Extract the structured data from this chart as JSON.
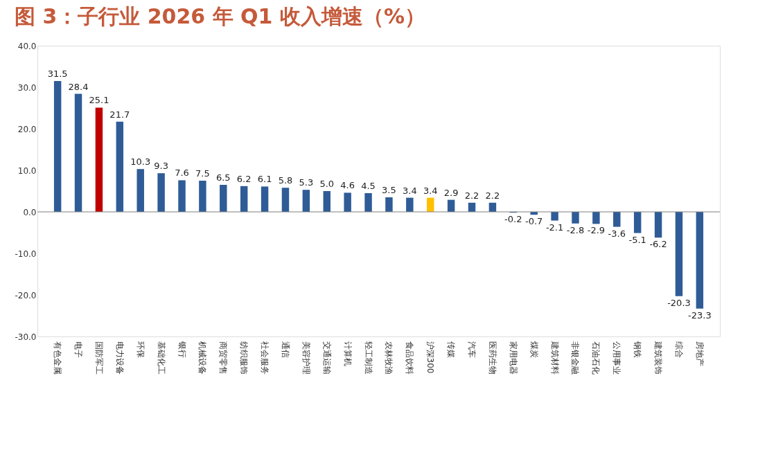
{
  "chart_data": {
    "type": "bar",
    "title": "图 3：子行业 2026 年 Q1 收入增速（%）",
    "categories": [
      "有色金属",
      "电子",
      "国防军工",
      "电力设备",
      "环保",
      "基础化工",
      "银行",
      "机械设备",
      "商贸零售",
      "纺织服饰",
      "社会服务",
      "通信",
      "美容护理",
      "交通运输",
      "计算机",
      "轻工制造",
      "农林牧渔",
      "食品饮料",
      "沪深300",
      "传媒",
      "汽车",
      "医药生物",
      "家用电器",
      "煤炭",
      "建筑材料",
      "非银金融",
      "石油石化",
      "公用事业",
      "钢铁",
      "建筑装饰",
      "综合",
      "房地产"
    ],
    "values": [
      31.5,
      28.4,
      25.1,
      21.7,
      10.3,
      9.3,
      7.6,
      7.5,
      6.5,
      6.2,
      6.1,
      5.8,
      5.3,
      5.0,
      4.6,
      4.5,
      3.5,
      3.4,
      3.4,
      2.9,
      2.2,
      2.2,
      -0.2,
      -0.7,
      -2.1,
      -2.8,
      -2.9,
      -3.6,
      -5.1,
      -6.2,
      -20.3,
      -23.3
    ],
    "colors": [
      "#2f5c97",
      "#2f5c97",
      "#c00000",
      "#2f5c97",
      "#2f5c97",
      "#2f5c97",
      "#2f5c97",
      "#2f5c97",
      "#2f5c97",
      "#2f5c97",
      "#2f5c97",
      "#2f5c97",
      "#2f5c97",
      "#2f5c97",
      "#2f5c97",
      "#2f5c97",
      "#2f5c97",
      "#2f5c97",
      "#ffc000",
      "#2f5c97",
      "#2f5c97",
      "#2f5c97",
      "#2f5c97",
      "#2f5c97",
      "#2f5c97",
      "#2f5c97",
      "#2f5c97",
      "#2f5c97",
      "#2f5c97",
      "#2f5c97",
      "#2f5c97",
      "#2f5c97"
    ],
    "ylim": [
      -30,
      40
    ],
    "yticks": [
      {
        "value": -30,
        "label": "-30.0"
      },
      {
        "value": -20,
        "label": "-20.0"
      },
      {
        "value": -10,
        "label": "-10.0"
      },
      {
        "value": 0,
        "label": "0.0"
      },
      {
        "value": 10,
        "label": "10.0"
      },
      {
        "value": 20,
        "label": "20.0"
      },
      {
        "value": 30,
        "label": "30.0"
      },
      {
        "value": 40,
        "label": "40.0"
      }
    ],
    "value_labels": [
      "31.5",
      "28.4",
      "25.1",
      "21.7",
      "10.3",
      "9.3",
      "7.6",
      "7.5",
      "6.5",
      "6.2",
      "6.1",
      "5.8",
      "5.3",
      "5.0",
      "4.6",
      "4.5",
      "3.5",
      "3.4",
      "3.4",
      "2.9",
      "2.2",
      "2.2",
      "-0.2",
      "-0.7",
      "-2.1",
      "-2.8",
      "-2.9",
      "-3.6",
      "-5.1",
      "-6.2",
      "-20.3",
      "-23.3"
    ]
  }
}
